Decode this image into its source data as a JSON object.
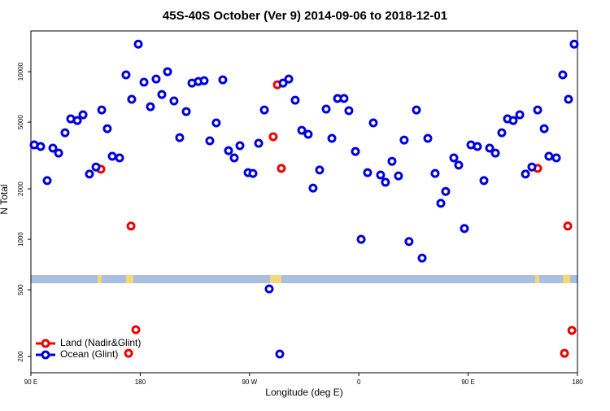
{
  "chart_data": {
    "type": "scatter",
    "title": "45S-40S October (Ver 9)   2014-09-06 to 2018-12-01",
    "xlabel": "Longitude (deg E)",
    "ylabel": "N Total",
    "xlim": [
      90,
      540
    ],
    "xticks": [
      {
        "value": 90,
        "label": "90 E"
      },
      {
        "value": 180,
        "label": "180"
      },
      {
        "value": 270,
        "label": "90 W"
      },
      {
        "value": 360,
        "label": "0"
      },
      {
        "value": 450,
        "label": "90 E"
      },
      {
        "value": 540,
        "label": "180"
      }
    ],
    "ylim": [
      160,
      17500
    ],
    "yticks": [
      200,
      500,
      1000,
      2000,
      5000,
      10000
    ],
    "ylog": true,
    "legend": "bottom-left",
    "series": [
      {
        "name": "Land (Nadir&Glint)",
        "color": "#ee0000",
        "x": [
          147.6,
          172.4,
          176.4,
          170.4,
          289.5,
          292.9,
          296.2,
          507.2,
          532.0,
          535.4,
          529.3
        ],
        "values": [
          2620,
          1200,
          289,
          209,
          4090,
          8360,
          2650,
          2650,
          1200,
          286,
          209
        ]
      },
      {
        "name": "Ocean (Glint)",
        "color": "#0000dd",
        "x": [
          92.7,
          98.0,
          103.4,
          108.1,
          112.8,
          118.1,
          122.8,
          128.2,
          132.9,
          138.2,
          143.6,
          148.3,
          152.9,
          157.0,
          163.0,
          168.3,
          173.0,
          178.4,
          183.1,
          188.4,
          193.1,
          197.8,
          202.5,
          207.8,
          212.5,
          217.9,
          222.6,
          227.9,
          232.6,
          237.3,
          242.6,
          248.0,
          252.7,
          257.4,
          262.1,
          268.8,
          272.8,
          277.5,
          282.2,
          286.2,
          294.9,
          297.6,
          302.3,
          307.6,
          313.0,
          318.3,
          322.3,
          327.7,
          333.1,
          337.8,
          342.5,
          347.8,
          351.8,
          357.2,
          361.9,
          367.2,
          371.9,
          377.9,
          381.9,
          387.3,
          392.6,
          397.3,
          401.3,
          407.4,
          412.1,
          416.8,
          422.8,
          427.5,
          431.5,
          438.2,
          442.2,
          446.9,
          452.3,
          457.6,
          463.0,
          467.7,
          472.4,
          477.7,
          482.4,
          487.1,
          492.5,
          497.2,
          502.5,
          507.2,
          512.6,
          516.5,
          522.6,
          527.9,
          532.6,
          537.3
        ],
        "values": [
          3660,
          3580,
          2240,
          3500,
          3270,
          4320,
          5230,
          5110,
          5530,
          2450,
          2700,
          5910,
          4570,
          3130,
          3060,
          9570,
          6840,
          14600,
          8650,
          6180,
          9040,
          7310,
          10000,
          6690,
          4040,
          5780,
          8550,
          8740,
          8840,
          3870,
          4950,
          8940,
          3380,
          3060,
          3620,
          2500,
          2470,
          3740,
          5910,
          506,
          207,
          8550,
          9040,
          6760,
          4470,
          4230,
          2020,
          2590,
          5980,
          4000,
          6920,
          6920,
          5850,
          3340,
          1000,
          2500,
          4950,
          2420,
          2190,
          2920,
          2390,
          3910,
          970,
          5910,
          773,
          4000,
          2470,
          1640,
          1930,
          3060,
          2770,
          1160,
          3660,
          3580,
          2240,
          3500,
          3270,
          4320,
          5230,
          5110,
          5530,
          2450,
          2700,
          5910,
          4570,
          3130,
          3060,
          9570,
          6840,
          14600
        ]
      }
    ]
  }
}
